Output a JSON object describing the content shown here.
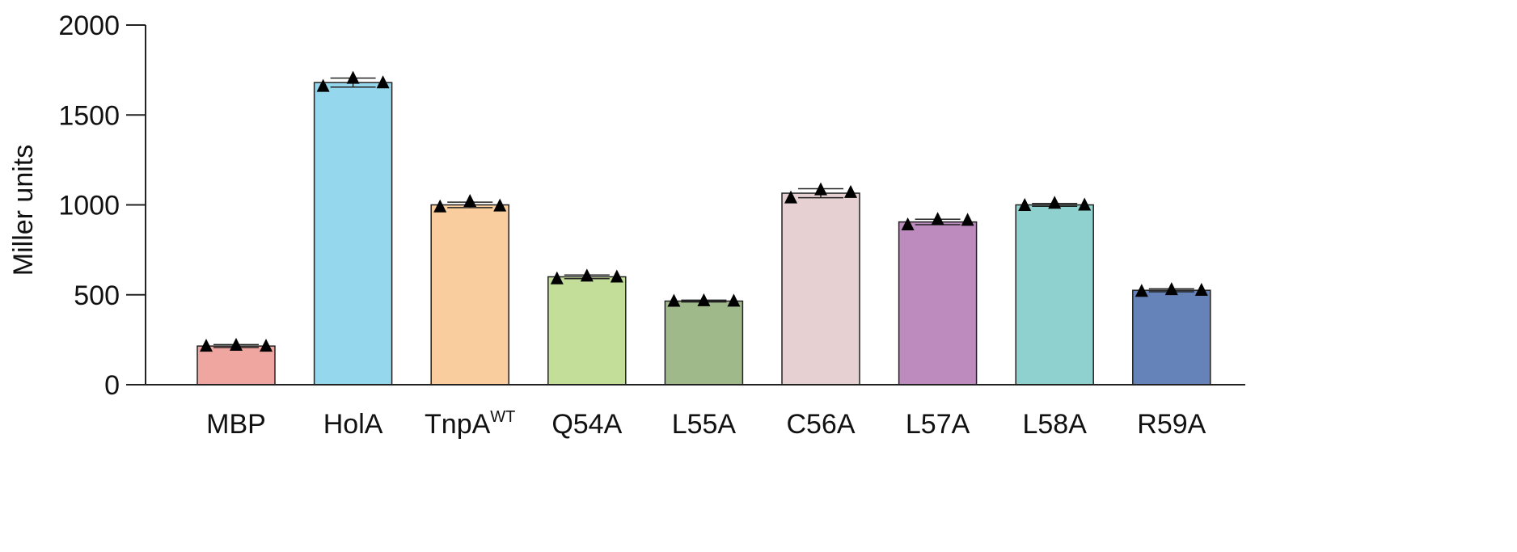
{
  "chart_data": {
    "type": "bar",
    "title": "",
    "xlabel": "",
    "ylabel": "Miller units",
    "ylim": [
      0,
      2000
    ],
    "yticks": [
      0,
      500,
      1000,
      1500,
      2000
    ],
    "grid": false,
    "categories": [
      {
        "label": "MBP",
        "sup": ""
      },
      {
        "label": "HolA",
        "sup": ""
      },
      {
        "label": "TnpA",
        "sup": "WT"
      },
      {
        "label": "Q54A",
        "sup": ""
      },
      {
        "label": "L55A",
        "sup": ""
      },
      {
        "label": "C56A",
        "sup": ""
      },
      {
        "label": "L57A",
        "sup": ""
      },
      {
        "label": "L58A",
        "sup": ""
      },
      {
        "label": "R59A",
        "sup": ""
      }
    ],
    "values": [
      215,
      1680,
      1000,
      600,
      465,
      1065,
      905,
      1000,
      525
    ],
    "errors": [
      8,
      25,
      15,
      10,
      5,
      25,
      15,
      8,
      8
    ],
    "points": [
      [
        215,
        220,
        215
      ],
      [
        1660,
        1705,
        1680
      ],
      [
        990,
        1020,
        995
      ],
      [
        590,
        605,
        600
      ],
      [
        465,
        468,
        466
      ],
      [
        1040,
        1085,
        1070
      ],
      [
        890,
        920,
        915
      ],
      [
        998,
        1010,
        1000
      ],
      [
        520,
        530,
        526
      ]
    ],
    "colors": [
      "#f0a6a0",
      "#95d7ec",
      "#f9cd9d",
      "#c2de98",
      "#a0b98a",
      "#e6d0d2",
      "#be8bbf",
      "#8ed1cf",
      "#6583b8"
    ]
  }
}
